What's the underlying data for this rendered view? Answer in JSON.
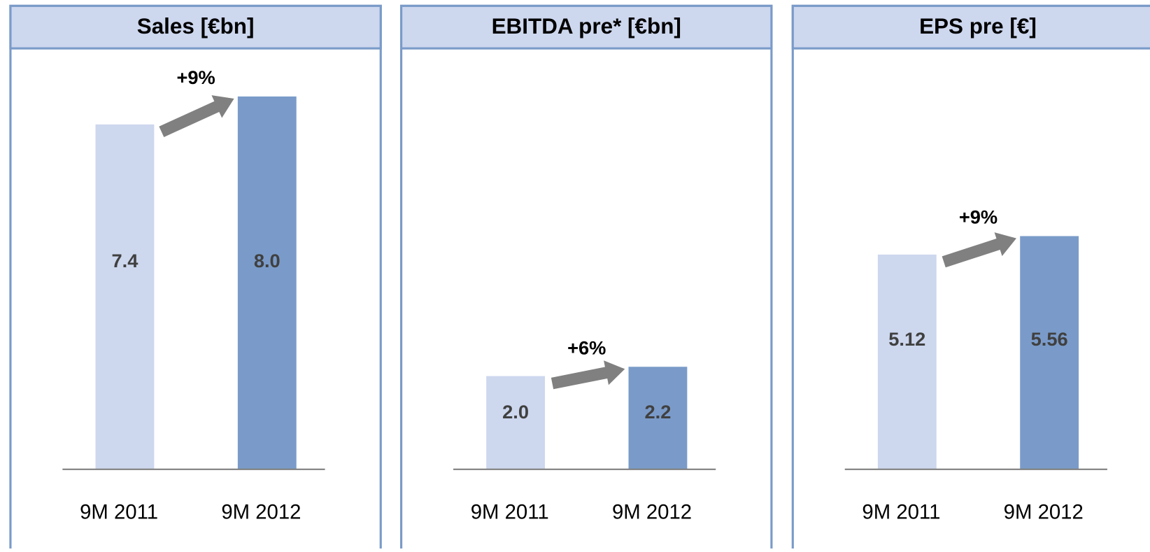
{
  "chart_data": [
    {
      "type": "bar",
      "title": "Sales [€bn]",
      "categories": [
        "9M 2011",
        "9M 2012"
      ],
      "values": [
        7.4,
        8.0
      ],
      "value_labels": [
        "7.4",
        "8.0"
      ],
      "colors": [
        "#cdd7ee",
        "#7a9bc9"
      ],
      "ylim": [
        0,
        9
      ],
      "annotation": "+9%"
    },
    {
      "type": "bar",
      "title": "EBITDA pre* [€bn]",
      "categories": [
        "9M 2011",
        "9M 2012"
      ],
      "values": [
        2.0,
        2.2
      ],
      "value_labels": [
        "2.0",
        "2.2"
      ],
      "colors": [
        "#cdd7ee",
        "#7a9bc9"
      ],
      "ylim": [
        0,
        9
      ],
      "annotation": "+6%"
    },
    {
      "type": "bar",
      "title": "EPS pre [€]",
      "categories": [
        "9M 2011",
        "9M 2012"
      ],
      "values": [
        5.12,
        5.56
      ],
      "value_labels": [
        "5.12",
        "5.56"
      ],
      "colors": [
        "#cdd7ee",
        "#7a9bc9"
      ],
      "ylim": [
        0,
        10
      ],
      "annotation": "+9%"
    }
  ]
}
